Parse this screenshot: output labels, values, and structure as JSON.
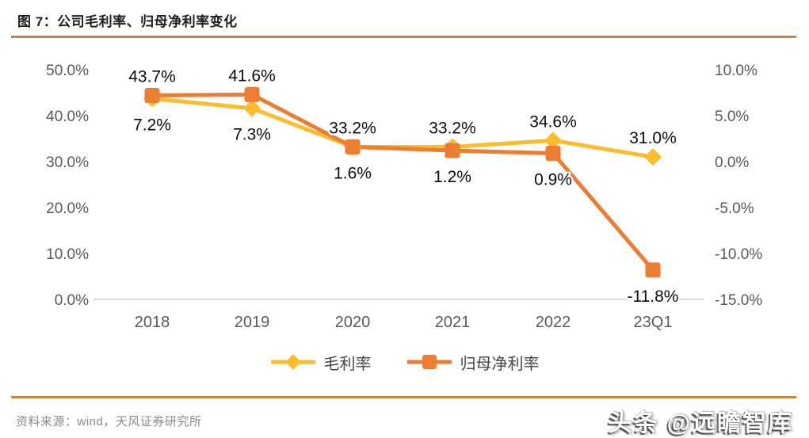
{
  "header": {
    "title": "图 7：公司毛利率、归母净利率变化"
  },
  "colors": {
    "accent_rule": "#c8873d",
    "axis_line": "#d9d9d9",
    "tick_text": "#595959",
    "gross_margin": "#fbbc2e",
    "net_margin": "#ed7d31"
  },
  "chart_data": {
    "type": "line",
    "title": "公司毛利率、归母净利率变化",
    "categories": [
      "2018",
      "2019",
      "2020",
      "2021",
      "2022",
      "23Q1"
    ],
    "series": [
      {
        "name": "毛利率",
        "axis": "left",
        "color": "#fbbc2e",
        "marker": "diamond",
        "values": [
          43.7,
          41.6,
          33.2,
          33.2,
          34.6,
          31.0
        ],
        "labels": [
          "43.7%",
          "41.6%",
          "33.2%",
          "33.2%",
          "34.6%",
          "31.0%"
        ]
      },
      {
        "name": "归母净利率",
        "axis": "right",
        "color": "#ed7d31",
        "marker": "square",
        "values": [
          7.2,
          7.3,
          1.6,
          1.2,
          0.9,
          -11.8
        ],
        "labels": [
          "7.2%",
          "7.3%",
          "1.6%",
          "1.2%",
          "0.9%",
          "-11.8%"
        ]
      }
    ],
    "left_axis": {
      "min": 0,
      "max": 50,
      "ticks": [
        "50.0%",
        "40.0%",
        "30.0%",
        "20.0%",
        "10.0%",
        "0.0%"
      ]
    },
    "right_axis": {
      "min": -15,
      "max": 10,
      "ticks": [
        "10.0%",
        "5.0%",
        "0.0%",
        "-5.0%",
        "-10.0%",
        "-15.0%"
      ]
    },
    "legend_position": "bottom",
    "grid": "off"
  },
  "footer": {
    "source": "资料来源：wind，天风证券研究所",
    "watermark": "头条 @远瞻智库"
  }
}
